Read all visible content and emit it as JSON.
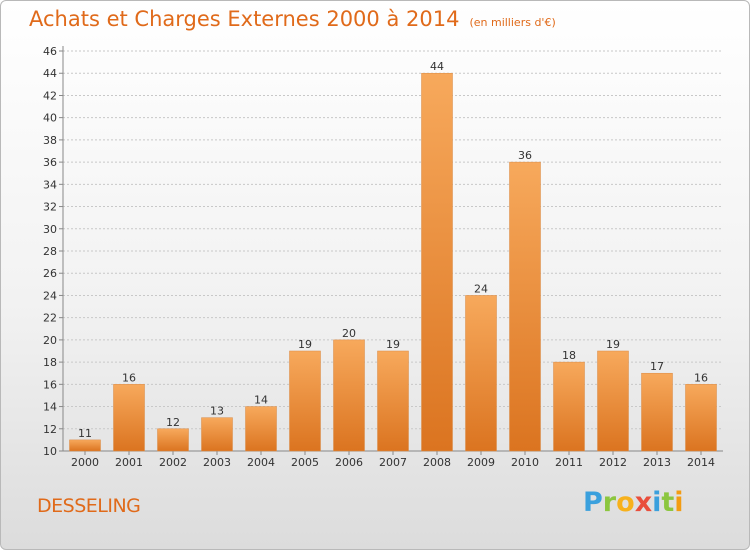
{
  "header": {
    "title": "Achats et Charges Externes 2000 à 2014",
    "unit": "(en milliers d'€)"
  },
  "footer": {
    "town": "DESSELING",
    "logo_letters": [
      "P",
      "r",
      "o",
      "x",
      "i",
      "t",
      "i"
    ],
    "logo_colors": [
      "#3aa0dd",
      "#8cc63f",
      "#f7b11c",
      "#e94e3c",
      "#3aa0dd",
      "#8cc63f",
      "#f39c12"
    ]
  },
  "colors": {
    "accent": "#e06a1a",
    "bar_light": "#f7a95c",
    "bar_dark": "#db7420",
    "grid": "#c8c8c8",
    "axis": "#888888"
  },
  "chart_data": {
    "type": "bar",
    "title": "Achats et Charges Externes 2000 à 2014",
    "subtitle": "(en milliers d'€)",
    "xlabel": "",
    "ylabel": "",
    "ylim": [
      10,
      46
    ],
    "y_ticks": [
      10,
      12,
      14,
      16,
      18,
      20,
      22,
      24,
      26,
      28,
      30,
      32,
      34,
      36,
      38,
      40,
      42,
      44,
      46
    ],
    "grid": true,
    "categories": [
      "2000",
      "2001",
      "2002",
      "2003",
      "2004",
      "2005",
      "2006",
      "2007",
      "2008",
      "2009",
      "2010",
      "2011",
      "2012",
      "2013",
      "2014"
    ],
    "values": [
      11,
      16,
      12,
      13,
      14,
      19,
      20,
      19,
      44,
      24,
      36,
      18,
      19,
      17,
      16
    ]
  }
}
